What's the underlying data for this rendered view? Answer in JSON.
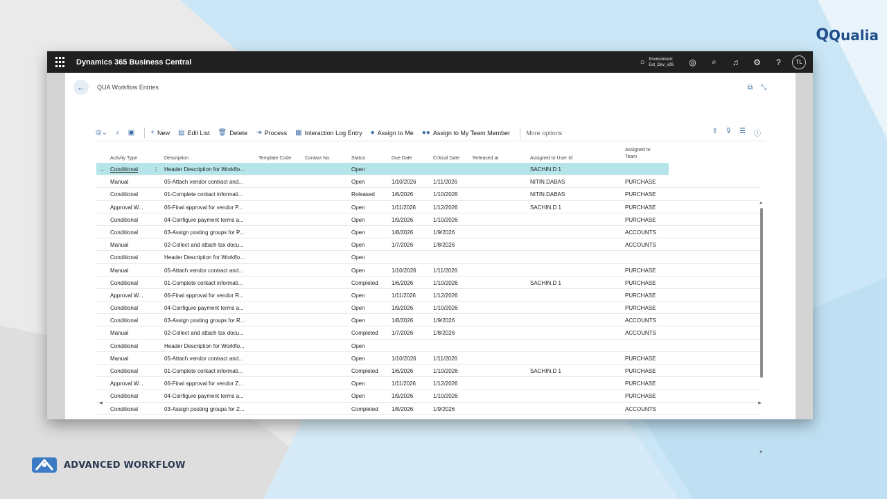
{
  "brand": {
    "top_logo": "Qualia",
    "bottom_label": "ADVANCED WORKFLOW"
  },
  "topbar": {
    "app_title": "Dynamics 365 Business Central",
    "env_label": "Environment:",
    "env_value": "Ext_Dev_v26",
    "avatar": "TL",
    "help": "?"
  },
  "page": {
    "title": "QUA Workflow Entries"
  },
  "actions": {
    "new": "New",
    "edit_list": "Edit List",
    "delete": "Delete",
    "process": "Process",
    "interaction_log": "Interaction Log Entry",
    "assign_to_me": "Assign to Me",
    "assign_team": "Assign to My Team Member",
    "more": "More options"
  },
  "columns": {
    "activity_type": "Activity Type",
    "description": "Description",
    "template_code": "Template Code",
    "contact_no": "Contact No.",
    "status": "Status",
    "due_date": "Due Date",
    "critical_date": "Critical Date",
    "released_at": "Released at",
    "assigned_user": "Assigned to User Id",
    "assigned_team_1": "Assigned to",
    "assigned_team_2": "Team"
  },
  "rows": [
    {
      "type": "Conditional",
      "desc": "Header Description for Workflo...",
      "status": "Open",
      "due": "",
      "crit": "",
      "user": "SACHIN.D 1",
      "team": ""
    },
    {
      "type": "Manual",
      "desc": "05-Attach vendor contract and...",
      "status": "Open",
      "due": "1/10/2026",
      "crit": "1/11/2026",
      "user": "NITIN.DABAS",
      "team": "PURCHASE"
    },
    {
      "type": "Conditional",
      "desc": "01-Complete contact informati...",
      "status": "Released",
      "due": "1/6/2026",
      "crit": "1/10/2026",
      "user": "NITIN.DABAS",
      "team": "PURCHASE"
    },
    {
      "type": "Approval W...",
      "desc": "06-Final approval for vendor P...",
      "status": "Open",
      "due": "1/11/2026",
      "crit": "1/12/2026",
      "user": "SACHIN.D 1",
      "team": "PURCHASE"
    },
    {
      "type": "Conditional",
      "desc": "04-Configure payment terms a...",
      "status": "Open",
      "due": "1/9/2026",
      "crit": "1/10/2026",
      "user": "",
      "team": "PURCHASE"
    },
    {
      "type": "Conditional",
      "desc": "03-Assign posting groups for P...",
      "status": "Open",
      "due": "1/8/2026",
      "crit": "1/9/2026",
      "user": "",
      "team": "ACCOUNTS"
    },
    {
      "type": "Manual",
      "desc": "02-Collect and attach tax docu...",
      "status": "Open",
      "due": "1/7/2026",
      "crit": "1/8/2026",
      "user": "",
      "team": "ACCOUNTS"
    },
    {
      "type": "Conditional",
      "desc": "Header Description for Workflo...",
      "status": "Open",
      "due": "",
      "crit": "",
      "user": "",
      "team": ""
    },
    {
      "type": "Manual",
      "desc": "05-Attach vendor contract and...",
      "status": "Open",
      "due": "1/10/2026",
      "crit": "1/11/2026",
      "user": "",
      "team": "PURCHASE"
    },
    {
      "type": "Conditional",
      "desc": "01-Complete contact informati...",
      "status": "Completed",
      "due": "1/6/2026",
      "crit": "1/10/2026",
      "user": "SACHIN.D 1",
      "team": "PURCHASE"
    },
    {
      "type": "Approval W...",
      "desc": "06-Final approval for vendor R...",
      "status": "Open",
      "due": "1/11/2026",
      "crit": "1/12/2026",
      "user": "",
      "team": "PURCHASE"
    },
    {
      "type": "Conditional",
      "desc": "04-Configure payment terms a...",
      "status": "Open",
      "due": "1/9/2026",
      "crit": "1/10/2026",
      "user": "",
      "team": "PURCHASE"
    },
    {
      "type": "Conditional",
      "desc": "03-Assign posting groups for R...",
      "status": "Open",
      "due": "1/8/2026",
      "crit": "1/9/2026",
      "user": "",
      "team": "ACCOUNTS"
    },
    {
      "type": "Manual",
      "desc": "02-Collect and attach tax docu...",
      "status": "Completed",
      "due": "1/7/2026",
      "crit": "1/8/2026",
      "user": "",
      "team": "ACCOUNTS"
    },
    {
      "type": "Conditional",
      "desc": "Header Description for Workflo...",
      "status": "Open",
      "due": "",
      "crit": "",
      "user": "",
      "team": ""
    },
    {
      "type": "Manual",
      "desc": "05-Attach vendor contract and...",
      "status": "Open",
      "due": "1/10/2026",
      "crit": "1/11/2026",
      "user": "",
      "team": "PURCHASE"
    },
    {
      "type": "Conditional",
      "desc": "01-Complete contact informati...",
      "status": "Completed",
      "due": "1/6/2026",
      "crit": "1/10/2026",
      "user": "SACHIN.D 1",
      "team": "PURCHASE"
    },
    {
      "type": "Approval W...",
      "desc": "06-Final approval for vendor Z...",
      "status": "Open",
      "due": "1/11/2026",
      "crit": "1/12/2026",
      "user": "",
      "team": "PURCHASE"
    },
    {
      "type": "Conditional",
      "desc": "04-Configure payment terms a...",
      "status": "Open",
      "due": "1/9/2026",
      "crit": "1/10/2026",
      "user": "",
      "team": "PURCHASE"
    },
    {
      "type": "Conditional",
      "desc": "03-Assign posting groups for Z...",
      "status": "Completed",
      "due": "1/8/2026",
      "crit": "1/9/2026",
      "user": "",
      "team": "ACCOUNTS"
    }
  ]
}
